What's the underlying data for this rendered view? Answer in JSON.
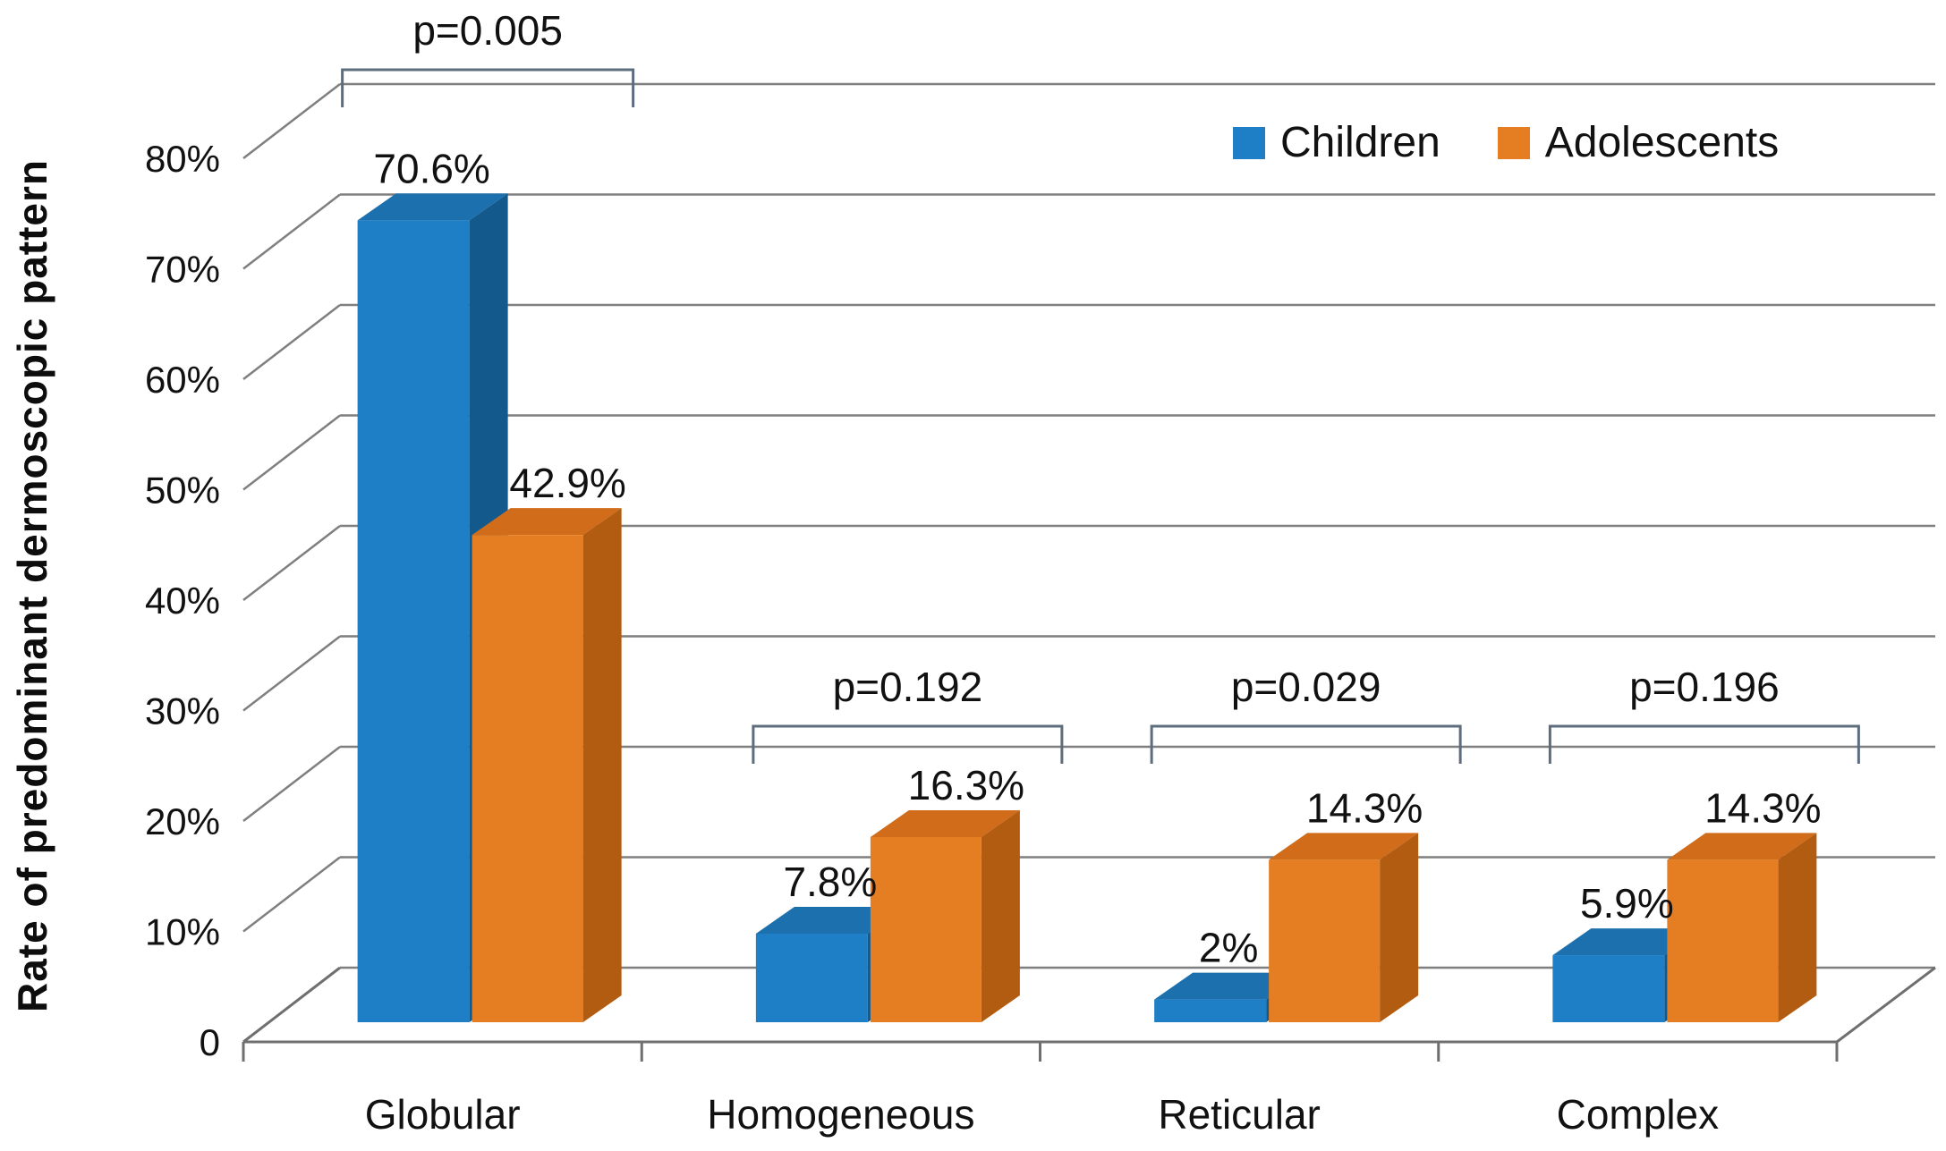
{
  "figure": {
    "background": "#ffffff",
    "gridline_color": "#7f7f7f",
    "axis_color": "#6f6f6f",
    "bracket_color": "#5d6d7e",
    "text_color": "#111111"
  },
  "legend": {
    "position": "top-right",
    "items": [
      {
        "label": "Children",
        "color": "#1E7FC6"
      },
      {
        "label": "Adolescents",
        "color": "#E57E22"
      }
    ]
  },
  "y_axis": {
    "title": "Rate of predominant dermoscopic pattern",
    "tick_labels": [
      "0",
      "10%",
      "20%",
      "30%",
      "40%",
      "50%",
      "60%",
      "70%",
      "80%"
    ]
  },
  "chart_data": {
    "type": "bar",
    "style": "3d-clustered-column",
    "title": "",
    "xlabel": "",
    "ylabel": "Rate of predominant dermoscopic pattern",
    "ylim": [
      0,
      80
    ],
    "ytick_step": 10,
    "grid": true,
    "legend_position": "top-right",
    "categories": [
      "Globular",
      "Homogeneous",
      "Reticular",
      "Complex"
    ],
    "series": [
      {
        "name": "Children",
        "values": [
          70.6,
          7.8,
          2,
          5.9
        ],
        "labels": [
          "70.6%",
          "7.8%",
          "2%",
          "5.9%"
        ],
        "color": "#1E7FC6",
        "color_top": "#1C70AE",
        "color_side": "#14598C"
      },
      {
        "name": "Adolescents",
        "values": [
          42.9,
          16.3,
          14.3,
          14.3
        ],
        "labels": [
          "42.9%",
          "16.3%",
          "14.3%",
          "14.3%"
        ],
        "color": "#E57E22",
        "color_top": "#D06C1A",
        "color_side": "#B25C12"
      }
    ],
    "p_values": [
      "p=0.005",
      "p=0.192",
      "p=0.029",
      "p=0.196"
    ]
  }
}
